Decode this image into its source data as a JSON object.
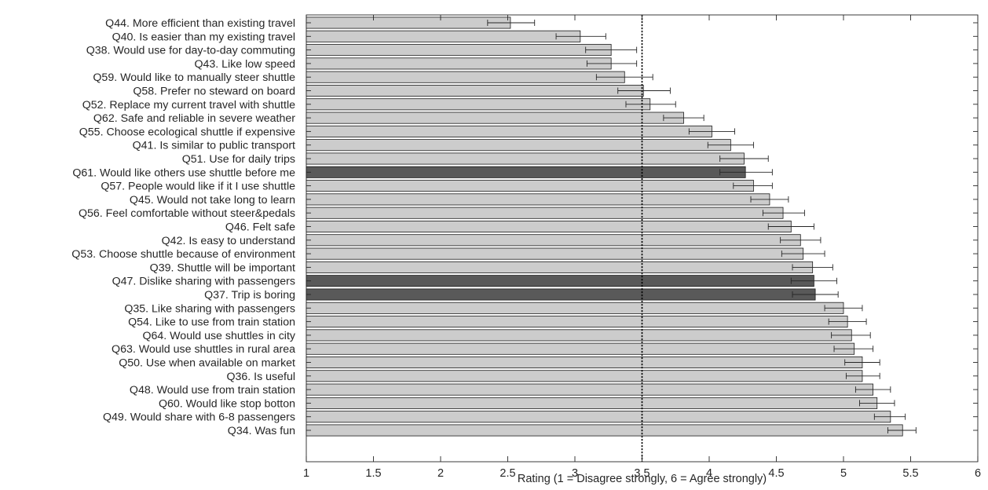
{
  "chart_data": {
    "type": "bar",
    "orientation": "horizontal",
    "xlabel": "Rating (1 = Disagree strongly, 6 = Agree strongly)",
    "xlim": [
      1,
      6
    ],
    "xticks": [
      "1",
      "1.5",
      "2",
      "2.5",
      "3",
      "3.5",
      "4",
      "4.5",
      "5",
      "5.5",
      "6"
    ],
    "reference_line": 3.5,
    "grid": false,
    "colors": {
      "default": "#cccccc",
      "highlight": "#595959"
    },
    "categories": [
      "Q44. More efficient than existing travel",
      "Q40. Is easier than my existing travel",
      "Q38. Would use for day-to-day commuting",
      "Q43. Like low speed",
      "Q59. Would like to manually steer shuttle",
      "Q58. Prefer no steward on board",
      "Q52. Replace my current travel with shuttle",
      "Q62. Safe and reliable in severe weather",
      "Q55. Choose ecological shuttle if expensive",
      "Q41. Is similar to public transport",
      "Q51. Use for daily trips",
      "Q61. Would like others use shuttle before me",
      "Q57. People would like if it I use shuttle",
      "Q45. Would not take long to learn",
      "Q56. Feel comfortable without steer&pedals",
      "Q46. Felt safe",
      "Q42. Is easy to understand",
      "Q53. Choose shuttle because of environment",
      "Q39. Shuttle will be important",
      "Q47. Dislike sharing with passengers",
      "Q37. Trip is boring",
      "Q35. Like sharing with passengers",
      "Q54. Like to use from train station",
      "Q64. Would use shuttles in city",
      "Q63. Would use shuttles in rural area",
      "Q50. Use when available on market",
      "Q36. Is useful",
      "Q48. Would use from train station",
      "Q60. Would like stop botton",
      "Q49. Would share with 6-8 passengers",
      "Q34. Was fun"
    ],
    "values": [
      2.52,
      3.04,
      3.27,
      3.27,
      3.37,
      3.51,
      3.56,
      3.81,
      4.02,
      4.16,
      4.26,
      4.27,
      4.33,
      4.45,
      4.55,
      4.61,
      4.68,
      4.7,
      4.77,
      4.78,
      4.79,
      5.0,
      5.03,
      5.06,
      5.08,
      5.14,
      5.14,
      5.22,
      5.25,
      5.35,
      5.44
    ],
    "error_low": [
      2.35,
      2.86,
      3.08,
      3.09,
      3.16,
      3.32,
      3.38,
      3.66,
      3.85,
      3.99,
      4.08,
      4.08,
      4.18,
      4.31,
      4.4,
      4.44,
      4.53,
      4.54,
      4.62,
      4.61,
      4.62,
      4.86,
      4.89,
      4.91,
      4.93,
      5.01,
      5.02,
      5.09,
      5.12,
      5.23,
      5.33
    ],
    "error_high": [
      2.7,
      3.23,
      3.46,
      3.46,
      3.58,
      3.71,
      3.75,
      3.96,
      4.19,
      4.33,
      4.44,
      4.47,
      4.47,
      4.59,
      4.71,
      4.78,
      4.83,
      4.86,
      4.92,
      4.95,
      4.96,
      5.14,
      5.17,
      5.2,
      5.22,
      5.27,
      5.27,
      5.35,
      5.38,
      5.46,
      5.54
    ],
    "highlighted": [
      "Q61. Would like others use shuttle before me",
      "Q47. Dislike sharing with passengers",
      "Q37. Trip is boring"
    ]
  }
}
